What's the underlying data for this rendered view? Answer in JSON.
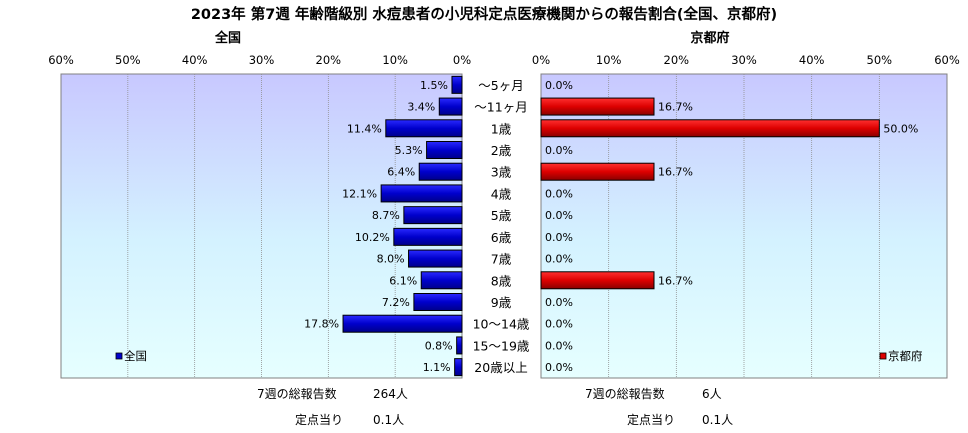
{
  "chart_data": {
    "type": "bar",
    "title": "2023年 第7週 年齢階級別 水痘患者の小児科定点医療機関からの報告割合(全国、京都府)",
    "categories": [
      "～5ヶ月",
      "～11ヶ月",
      "1歳",
      "2歳",
      "3歳",
      "4歳",
      "5歳",
      "6歳",
      "7歳",
      "8歳",
      "9歳",
      "10～14歳",
      "15～19歳",
      "20歳以上"
    ],
    "xlim": [
      0,
      60
    ],
    "ticks": [
      "60%",
      "50%",
      "40%",
      "30%",
      "20%",
      "10%",
      "0%"
    ],
    "ticks_right": [
      "0%",
      "10%",
      "20%",
      "30%",
      "40%",
      "50%",
      "60%"
    ],
    "series": [
      {
        "name": "全国",
        "panel_label": "全国",
        "legend": "全国",
        "color": "#0000cc",
        "values": [
          1.5,
          3.4,
          11.4,
          5.3,
          6.4,
          12.1,
          8.7,
          10.2,
          8.0,
          6.1,
          7.2,
          17.8,
          0.8,
          1.1
        ],
        "labels": [
          "1.5%",
          "3.4%",
          "11.4%",
          "5.3%",
          "6.4%",
          "12.1%",
          "8.7%",
          "10.2%",
          "8.0%",
          "6.1%",
          "7.2%",
          "17.8%",
          "0.8%",
          "1.1%"
        ]
      },
      {
        "name": "京都府",
        "panel_label": "京都府",
        "legend": "京都府",
        "color": "#dd0000",
        "values": [
          0,
          16.7,
          50.0,
          0,
          16.7,
          0,
          0,
          0,
          0,
          16.7,
          0,
          0,
          0,
          0
        ],
        "labels": [
          "0.0%",
          "16.7%",
          "50.0%",
          "0.0%",
          "16.7%",
          "0.0%",
          "0.0%",
          "0.0%",
          "0.0%",
          "16.7%",
          "0.0%",
          "0.0%",
          "0.0%",
          "0.0%"
        ]
      }
    ],
    "grid": true,
    "legend_position": "bottom-left / bottom-right"
  },
  "footer": {
    "left_total_label": "7週の総報告数",
    "left_total_value": "264人",
    "left_per_label": "定点当り",
    "left_per_value": "0.1人",
    "right_total_label": "7週の総報告数",
    "right_total_value": "6人",
    "right_per_label": "定点当り",
    "right_per_value": "0.1人"
  },
  "colors": {
    "plot_gradient_top": "#c8c8ff",
    "plot_gradient_bottom": "#e6ffff",
    "japan_bar": "#0000cc",
    "kyoto_bar": "#dd0000"
  }
}
